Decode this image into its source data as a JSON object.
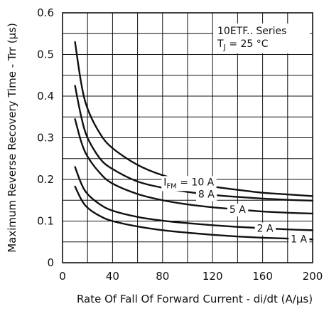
{
  "chart_data": {
    "type": "line",
    "xlabel": "Rate Of Fall Of Forward Current - di/dt (A/µs)",
    "ylabel": "Maximum Reverse Recovery Time - Trr (µs)",
    "xlim": [
      0,
      200
    ],
    "ylim": [
      0,
      0.6
    ],
    "x_ticks": [
      "0",
      "40",
      "80",
      "120",
      "160",
      "200"
    ],
    "y_ticks": [
      "0",
      "0.1",
      "0.2",
      "0.3",
      "0.4",
      "0.5",
      "0.6"
    ],
    "grid": true,
    "annotation": {
      "line1": "10ETF.. Series",
      "line2_prefix": "T",
      "line2_sub": "J",
      "line2_suffix": " = 25 °C"
    },
    "series": [
      {
        "name": "IFM = 10 A",
        "label_main": "I",
        "label_sub": "FM",
        "label_suffix": " = 10 A",
        "x": [
          10,
          15,
          20,
          30,
          40,
          60,
          80,
          100,
          120,
          140,
          160,
          180,
          200
        ],
        "y": [
          0.53,
          0.43,
          0.37,
          0.31,
          0.275,
          0.235,
          0.21,
          0.195,
          0.183,
          0.175,
          0.168,
          0.164,
          0.16
        ]
      },
      {
        "name": "8 A",
        "label_main": "8 A",
        "x": [
          10,
          15,
          20,
          30,
          40,
          60,
          80,
          100,
          120,
          140,
          160,
          180,
          200
        ],
        "y": [
          0.425,
          0.35,
          0.3,
          0.25,
          0.225,
          0.195,
          0.18,
          0.17,
          0.163,
          0.158,
          0.154,
          0.151,
          0.149
        ]
      },
      {
        "name": "5 A",
        "label_main": "5 A",
        "x": [
          10,
          15,
          20,
          30,
          40,
          60,
          80,
          100,
          120,
          140,
          160,
          180,
          200
        ],
        "y": [
          0.345,
          0.29,
          0.255,
          0.215,
          0.19,
          0.165,
          0.15,
          0.14,
          0.133,
          0.128,
          0.123,
          0.12,
          0.118
        ]
      },
      {
        "name": "2 A",
        "label_main": "2 A",
        "x": [
          10,
          15,
          20,
          30,
          40,
          60,
          80,
          100,
          120,
          140,
          160,
          180,
          200
        ],
        "y": [
          0.23,
          0.19,
          0.165,
          0.14,
          0.125,
          0.11,
          0.101,
          0.095,
          0.09,
          0.086,
          0.083,
          0.08,
          0.078
        ]
      },
      {
        "name": "1 A",
        "label_main": "1 A",
        "x": [
          10,
          15,
          20,
          30,
          40,
          60,
          80,
          100,
          120,
          140,
          160,
          180,
          200
        ],
        "y": [
          0.183,
          0.152,
          0.132,
          0.112,
          0.1,
          0.087,
          0.078,
          0.072,
          0.067,
          0.063,
          0.06,
          0.058,
          0.056
        ]
      }
    ]
  }
}
